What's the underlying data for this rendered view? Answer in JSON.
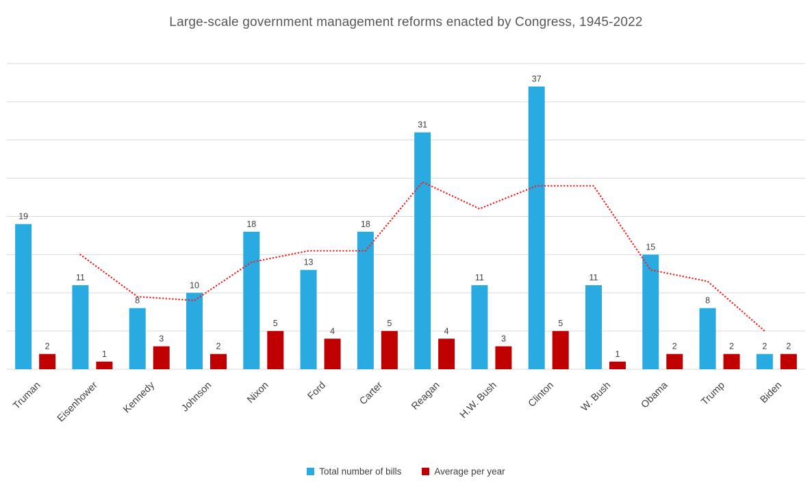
{
  "title": "Large-scale government management reforms enacted by Congress, 1945-2022",
  "colors": {
    "background": "#FFFFFF",
    "gridline": "#D9D9D9",
    "axis_line": "#D9D9D9",
    "text": "#404040",
    "title_text": "#575757",
    "total_bills_bar": "#29ABE2",
    "average_per_year_bar": "#C00000",
    "trendline": "#FF1A1A"
  },
  "chart_data": {
    "type": "bar",
    "title": "Large-scale government management reforms enacted by Congress, 1945-2022",
    "categories": [
      "Truman",
      "Eisenhower",
      "Kennedy",
      "Johnson",
      "Nixon",
      "Ford",
      "Carter",
      "Reagan",
      "H.W. Bush",
      "Clinton",
      "W. Bush",
      "Obama",
      "Trump",
      "Biden"
    ],
    "series": [
      {
        "name": "Total number of bills",
        "type": "bar",
        "color": "#29ABE2",
        "in_legend": true,
        "data_labels": true,
        "values": [
          19,
          11,
          8,
          10,
          18,
          13,
          18,
          31,
          11,
          37,
          11,
          15,
          8,
          2
        ]
      },
      {
        "name": "Average per year",
        "type": "bar",
        "color": "#C00000",
        "in_legend": true,
        "data_labels": true,
        "values": [
          2,
          1,
          3,
          2,
          5,
          4,
          5,
          4,
          3,
          5,
          1,
          2,
          2,
          2
        ]
      },
      {
        "name": "Moving average of Total number of bills (period 2, estimated from line)",
        "type": "line",
        "line_style": "dotted",
        "color": "#FF1A1A",
        "in_legend": false,
        "data_labels": false,
        "values": [
          null,
          15,
          9.5,
          9,
          14,
          15.5,
          15.5,
          24.5,
          21,
          24,
          24,
          13,
          11.5,
          5
        ]
      }
    ],
    "xlabel": "",
    "ylabel": "",
    "ylim": [
      0,
      40
    ],
    "y_axis_tick_labels_visible": false,
    "gridlines": {
      "show": true,
      "interval": 5
    },
    "legend_position": "bottom",
    "x_label_rotation_deg": 45
  }
}
